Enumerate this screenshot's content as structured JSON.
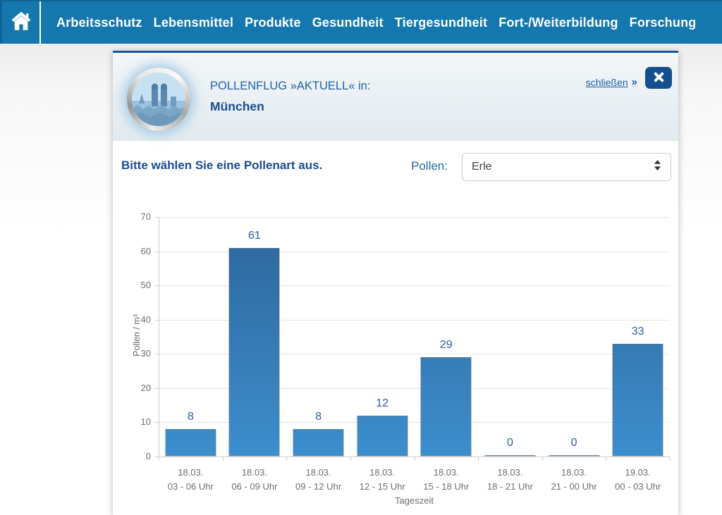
{
  "nav": {
    "items": [
      {
        "label": "Arbeitsschutz"
      },
      {
        "label": "Lebensmittel"
      },
      {
        "label": "Produkte"
      },
      {
        "label": "Gesundheit"
      },
      {
        "label": "Tiergesundheit"
      },
      {
        "label": "Fort-/Weiterbildung"
      },
      {
        "label": "Forschung"
      }
    ]
  },
  "panel": {
    "header": {
      "title_line1": "POLLENFLUG »AKTUELL« in:",
      "title_line2": "München",
      "close_link": "schließen",
      "close_chevrons": "»"
    },
    "prompt": "Bitte wählen Sie eine Pollenart aus.",
    "pollen_label": "Pollen:",
    "pollen_select": {
      "value": "Erle"
    }
  },
  "chart_data": {
    "type": "bar",
    "categories": [
      {
        "date": "18.03.",
        "time": "03 - 06 Uhr"
      },
      {
        "date": "18.03.",
        "time": "06 - 09 Uhr"
      },
      {
        "date": "18.03.",
        "time": "09 - 12 Uhr"
      },
      {
        "date": "18.03.",
        "time": "12 - 15 Uhr"
      },
      {
        "date": "18.03.",
        "time": "15 - 18 Uhr"
      },
      {
        "date": "18.03.",
        "time": "18 - 21 Uhr"
      },
      {
        "date": "18.03.",
        "time": "21 - 00 Uhr"
      },
      {
        "date": "19.03.",
        "time": "00 - 03 Uhr"
      }
    ],
    "values": [
      8,
      61,
      8,
      12,
      29,
      0,
      0,
      33
    ],
    "title": "",
    "xlabel": "Tageszeit",
    "ylabel": "Pollen / m³",
    "ylim": [
      0,
      70
    ],
    "ytick_step": 10,
    "grid": true,
    "legend": "none"
  },
  "colors": {
    "nav_bg": "#1478af",
    "nav_text": "#ffffff",
    "page_bg_top": "#ececec",
    "panel_top_border": "#1853a0",
    "header_bg_top": "#f2f6f8",
    "header_bg_bottom": "#e2eaee",
    "title_blue": "#2060a8",
    "dark_blue": "#1b4d8f",
    "link_blue": "#1d5ca3",
    "pollen_label_blue": "#2767a8",
    "close_btn_bg": "#134e8f",
    "select_border": "#cccccc",
    "select_text": "#3f3f3f",
    "bar_top": "#2d659a",
    "bar_bottom": "#3c8ecd",
    "value_label": "#2b5fa5",
    "tick_text": "#6e6e6e",
    "grid_line": "#e6e6e6",
    "axis_line": "#cccccc"
  }
}
